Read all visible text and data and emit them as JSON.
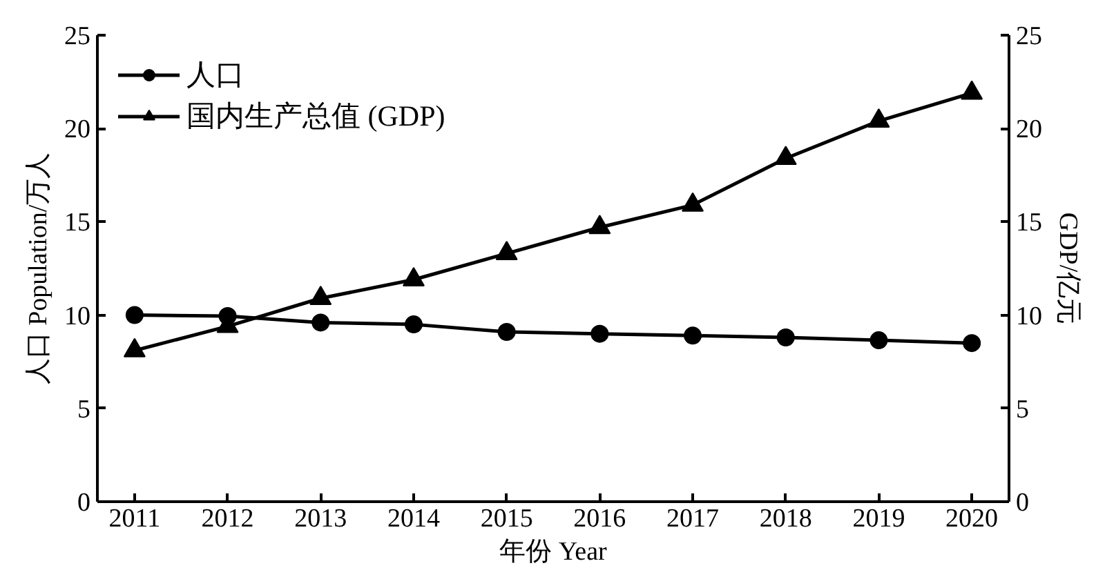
{
  "chart_data": {
    "type": "line",
    "x": [
      2011,
      2012,
      2013,
      2014,
      2015,
      2016,
      2017,
      2018,
      2019,
      2020
    ],
    "xlabel": "年份 Year",
    "ylabel": "人口 Population/万人",
    "y2label": "GDP/亿元",
    "xlim": [
      2010.6,
      2020.4
    ],
    "xticks": [
      2011,
      2012,
      2013,
      2014,
      2015,
      2016,
      2017,
      2018,
      2019,
      2020
    ],
    "ylim": [
      0,
      25
    ],
    "yticks": [
      0,
      5,
      10,
      15,
      20,
      25
    ],
    "y2lim": [
      0,
      25
    ],
    "y2ticks": [
      0,
      5,
      10,
      15,
      20,
      25
    ],
    "grid": false,
    "legend": "top left",
    "line_style": "solid",
    "series": [
      {
        "name": "人口",
        "color": "#000000",
        "marker": "circle",
        "values": [
          10.0,
          9.95,
          9.6,
          9.5,
          9.1,
          9.0,
          8.9,
          8.8,
          8.65,
          8.5
        ]
      },
      {
        "name": "国内生产总值 (GDP)",
        "color": "#000000",
        "marker": "triangle",
        "values": [
          8.1,
          9.4,
          10.9,
          11.9,
          13.3,
          14.7,
          15.9,
          18.4,
          20.4,
          21.9
        ]
      }
    ]
  }
}
